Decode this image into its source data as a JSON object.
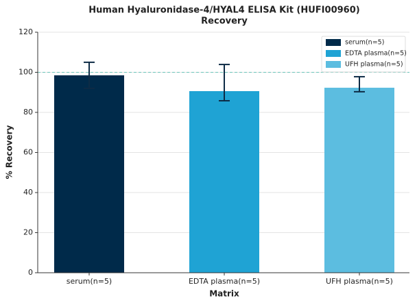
{
  "chart_data": {
    "type": "bar",
    "title": "Human Hyaluronidase-4/HYAL4 ELISA Kit (HUFI00960)",
    "subtitle": "Recovery",
    "x_label": "Matrix",
    "y_label": "% Recovery",
    "categories": [
      "serum(n=5)",
      "EDTA plasma(n=5)",
      "UFH plasma(n=5)"
    ],
    "values": [
      98.5,
      90.6,
      92.3
    ],
    "error_plus": [
      6.5,
      13.3,
      5.5
    ],
    "error_minus": [
      6.5,
      4.8,
      2.0
    ],
    "colors": [
      "#002a4a",
      "#1fa3d4",
      "#5cbde0"
    ],
    "reference_line": 100,
    "ylim": [
      0,
      120
    ],
    "yticks": [
      0,
      20,
      40,
      60,
      80,
      100,
      120
    ],
    "grid": true,
    "legend": "upper right"
  }
}
